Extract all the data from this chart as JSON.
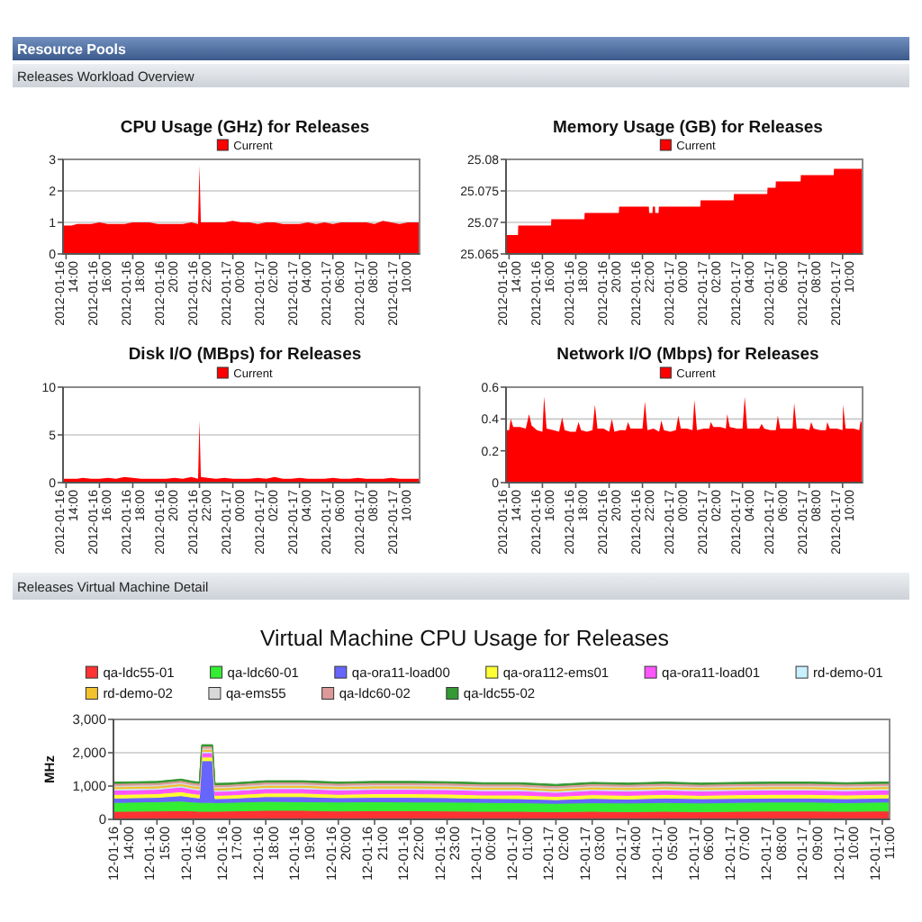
{
  "chart_data": [
    {
      "type": "area",
      "title": "CPU Usage (GHz) for Releases",
      "annotations": [
        "Resource Pools",
        "Releases Workload Overview"
      ],
      "x": [
        "2012-01-16T13:49",
        "2012-01-16T14:00",
        "2012-01-16T14:20",
        "2012-01-16T14:40",
        "2012-01-16T15:00",
        "2012-01-16T15:30",
        "2012-01-16T16:00",
        "2012-01-16T16:30",
        "2012-01-16T17:00",
        "2012-01-16T17:30",
        "2012-01-16T18:00",
        "2012-01-16T18:30",
        "2012-01-16T19:00",
        "2012-01-16T19:30",
        "2012-01-16T20:00",
        "2012-01-16T20:30",
        "2012-01-16T21:00",
        "2012-01-16T21:30",
        "2012-01-16T21:55",
        "2012-01-16T22:00",
        "2012-01-16T22:05",
        "2012-01-16T22:30",
        "2012-01-16T23:00",
        "2012-01-16T23:30",
        "2012-01-17T00:00",
        "2012-01-17T00:30",
        "2012-01-17T01:00",
        "2012-01-17T01:30",
        "2012-01-17T02:00",
        "2012-01-17T02:30",
        "2012-01-17T03:00",
        "2012-01-17T03:30",
        "2012-01-17T04:00",
        "2012-01-17T04:30",
        "2012-01-17T05:00",
        "2012-01-17T05:30",
        "2012-01-17T06:00",
        "2012-01-17T06:30",
        "2012-01-17T07:00",
        "2012-01-17T07:30",
        "2012-01-17T08:00",
        "2012-01-17T08:30",
        "2012-01-17T09:00",
        "2012-01-17T09:30",
        "2012-01-17T10:00",
        "2012-01-17T10:30",
        "2012-01-17T11:00",
        "2012-01-17T11:12"
      ],
      "series": [
        {
          "name": "Current",
          "color": "#ff0000",
          "values": [
            0.9,
            0.9,
            0.9,
            0.95,
            0.95,
            0.95,
            1,
            0.95,
            0.95,
            0.95,
            1,
            1,
            1,
            0.95,
            0.95,
            0.95,
            0.95,
            1,
            0.95,
            2.8,
            1,
            1,
            1,
            1,
            1.05,
            1,
            1,
            0.95,
            1,
            1,
            0.95,
            0.95,
            0.95,
            1,
            0.95,
            1,
            0.95,
            1,
            1,
            1,
            1,
            0.95,
            1.05,
            1,
            0.95,
            1,
            1,
            1
          ]
        }
      ],
      "xlim": [
        "2012-01-16T13:49",
        "2012-01-17T11:12"
      ],
      "xticks": [
        {
          "value": "2012-01-16T14:00",
          "label": "2012-01-16 14:00"
        },
        {
          "value": "2012-01-16T16:00",
          "label": "2012-01-16 16:00"
        },
        {
          "value": "2012-01-16T18:00",
          "label": "2012-01-16 18:00"
        },
        {
          "value": "2012-01-16T20:00",
          "label": "2012-01-16 20:00"
        },
        {
          "value": "2012-01-16T22:00",
          "label": "2012-01-16 22:00"
        },
        {
          "value": "2012-01-17T00:00",
          "label": "2012-01-17 00:00"
        },
        {
          "value": "2012-01-17T02:00",
          "label": "2012-01-17 02:00"
        },
        {
          "value": "2012-01-17T04:00",
          "label": "2012-01-17 04:00"
        },
        {
          "value": "2012-01-17T06:00",
          "label": "2012-01-17 06:00"
        },
        {
          "value": "2012-01-17T08:00",
          "label": "2012-01-17 08:00"
        },
        {
          "value": "2012-01-17T10:00",
          "label": "2012-01-17 10:00"
        }
      ],
      "ylim": [
        0,
        3
      ],
      "yticks": [
        0,
        1,
        2,
        3
      ],
      "grid": "y",
      "legend": "top"
    },
    {
      "type": "area",
      "title": "Memory Usage (GB) for Releases",
      "x": [
        "2012-01-16T13:49",
        "2012-01-16T14:32",
        "2012-01-16T14:33",
        "2012-01-16T16:31",
        "2012-01-16T16:32",
        "2012-01-16T18:31",
        "2012-01-16T18:32",
        "2012-01-16T20:35",
        "2012-01-16T20:36",
        "2012-01-16T22:23",
        "2012-01-16T22:24",
        "2012-01-16T22:36",
        "2012-01-16T22:37",
        "2012-01-16T22:45",
        "2012-01-16T22:46",
        "2012-01-16T22:58",
        "2012-01-16T22:59",
        "2012-01-17T01:28",
        "2012-01-17T01:29",
        "2012-01-17T03:28",
        "2012-01-17T03:29",
        "2012-01-17T05:29",
        "2012-01-17T05:30",
        "2012-01-17T05:59",
        "2012-01-17T06:00",
        "2012-01-17T07:29",
        "2012-01-17T07:30",
        "2012-01-17T09:28",
        "2012-01-17T09:29",
        "2012-01-17T11:12"
      ],
      "series": [
        {
          "name": "Current",
          "color": "#ff0000",
          "values": [
            25.068,
            25.068,
            25.0695,
            25.0695,
            25.0705,
            25.0705,
            25.0715,
            25.0715,
            25.0725,
            25.0725,
            25.0715,
            25.0715,
            25.0725,
            25.0725,
            25.0715,
            25.0715,
            25.0725,
            25.0725,
            25.0735,
            25.0735,
            25.0745,
            25.0745,
            25.0755,
            25.0755,
            25.0765,
            25.0765,
            25.0775,
            25.0775,
            25.0785,
            25.0785
          ]
        }
      ],
      "xlim": [
        "2012-01-16T13:49",
        "2012-01-17T11:12"
      ],
      "xticks": [
        {
          "value": "2012-01-16T14:00",
          "label": "2012-01-16 14:00"
        },
        {
          "value": "2012-01-16T16:00",
          "label": "2012-01-16 16:00"
        },
        {
          "value": "2012-01-16T18:00",
          "label": "2012-01-16 18:00"
        },
        {
          "value": "2012-01-16T20:00",
          "label": "2012-01-16 20:00"
        },
        {
          "value": "2012-01-16T22:00",
          "label": "2012-01-16 22:00"
        },
        {
          "value": "2012-01-17T00:00",
          "label": "2012-01-17 00:00"
        },
        {
          "value": "2012-01-17T02:00",
          "label": "2012-01-17 02:00"
        },
        {
          "value": "2012-01-17T04:00",
          "label": "2012-01-17 04:00"
        },
        {
          "value": "2012-01-17T06:00",
          "label": "2012-01-17 06:00"
        },
        {
          "value": "2012-01-17T08:00",
          "label": "2012-01-17 08:00"
        },
        {
          "value": "2012-01-17T10:00",
          "label": "2012-01-17 10:00"
        }
      ],
      "ylim": [
        25.065,
        25.08
      ],
      "yticks": [
        25.065,
        25.07,
        25.075,
        25.08
      ],
      "grid": "y",
      "legend": "top"
    },
    {
      "type": "area",
      "title": "Disk I/O (MBps) for Releases",
      "x": [
        "2012-01-16T13:49",
        "2012-01-16T14:00",
        "2012-01-16T14:20",
        "2012-01-16T14:40",
        "2012-01-16T15:00",
        "2012-01-16T15:30",
        "2012-01-16T16:00",
        "2012-01-16T16:30",
        "2012-01-16T17:00",
        "2012-01-16T17:30",
        "2012-01-16T18:00",
        "2012-01-16T18:30",
        "2012-01-16T19:00",
        "2012-01-16T19:30",
        "2012-01-16T20:00",
        "2012-01-16T20:30",
        "2012-01-16T21:00",
        "2012-01-16T21:30",
        "2012-01-16T21:55",
        "2012-01-16T22:00",
        "2012-01-16T22:05",
        "2012-01-16T22:30",
        "2012-01-16T23:00",
        "2012-01-16T23:30",
        "2012-01-17T00:00",
        "2012-01-17T00:30",
        "2012-01-17T01:00",
        "2012-01-17T01:30",
        "2012-01-17T02:00",
        "2012-01-17T02:30",
        "2012-01-17T03:00",
        "2012-01-17T03:30",
        "2012-01-17T04:00",
        "2012-01-17T04:30",
        "2012-01-17T05:00",
        "2012-01-17T05:30",
        "2012-01-17T06:00",
        "2012-01-17T06:30",
        "2012-01-17T07:00",
        "2012-01-17T07:30",
        "2012-01-17T08:00",
        "2012-01-17T08:30",
        "2012-01-17T09:00",
        "2012-01-17T09:30",
        "2012-01-17T10:00",
        "2012-01-17T10:30",
        "2012-01-17T11:00",
        "2012-01-17T11:12"
      ],
      "series": [
        {
          "name": "Current",
          "color": "#ff0000",
          "values": [
            0.4,
            0.4,
            0.4,
            0.4,
            0.5,
            0.4,
            0.4,
            0.5,
            0.4,
            0.6,
            0.5,
            0.4,
            0.4,
            0.4,
            0.4,
            0.5,
            0.4,
            0.6,
            0.4,
            6.5,
            0.6,
            0.5,
            0.4,
            0.5,
            0.4,
            0.4,
            0.4,
            0.5,
            0.4,
            0.6,
            0.4,
            0.4,
            0.5,
            0.4,
            0.4,
            0.4,
            0.5,
            0.4,
            0.4,
            0.5,
            0.4,
            0.4,
            0.4,
            0.5,
            0.4,
            0.4,
            0.4,
            0.4
          ]
        }
      ],
      "xlim": [
        "2012-01-16T13:49",
        "2012-01-17T11:12"
      ],
      "xticks": [
        {
          "value": "2012-01-16T14:00",
          "label": "2012-01-16 14:00"
        },
        {
          "value": "2012-01-16T16:00",
          "label": "2012-01-16 16:00"
        },
        {
          "value": "2012-01-16T18:00",
          "label": "2012-01-16 18:00"
        },
        {
          "value": "2012-01-16T20:00",
          "label": "2012-01-16 20:00"
        },
        {
          "value": "2012-01-16T22:00",
          "label": "2012-01-16 22:00"
        },
        {
          "value": "2012-01-17T00:00",
          "label": "2012-01-17 00:00"
        },
        {
          "value": "2012-01-17T02:00",
          "label": "2012-01-17 02:00"
        },
        {
          "value": "2012-01-17T04:00",
          "label": "2012-01-17 04:00"
        },
        {
          "value": "2012-01-17T06:00",
          "label": "2012-01-17 06:00"
        },
        {
          "value": "2012-01-17T08:00",
          "label": "2012-01-17 08:00"
        },
        {
          "value": "2012-01-17T10:00",
          "label": "2012-01-17 10:00"
        }
      ],
      "ylim": [
        0,
        10
      ],
      "yticks": [
        0,
        5,
        10
      ],
      "grid": "y",
      "legend": "top"
    },
    {
      "type": "area",
      "title": "Network I/O (Mbps) for Releases",
      "x": [
        "2012-01-16T13:49",
        "2012-01-16T14:00",
        "2012-01-16T14:06",
        "2012-01-16T14:15",
        "2012-01-16T14:40",
        "2012-01-16T15:00",
        "2012-01-16T15:12",
        "2012-01-16T15:21",
        "2012-01-16T15:40",
        "2012-01-16T16:00",
        "2012-01-16T16:06",
        "2012-01-16T16:15",
        "2012-01-16T16:40",
        "2012-01-16T17:00",
        "2012-01-16T17:11",
        "2012-01-16T17:20",
        "2012-01-16T17:40",
        "2012-01-16T18:00",
        "2012-01-16T18:10",
        "2012-01-16T18:19",
        "2012-01-16T18:40",
        "2012-01-16T19:00",
        "2012-01-16T19:09",
        "2012-01-16T19:18",
        "2012-01-16T19:40",
        "2012-01-16T20:00",
        "2012-01-16T20:10",
        "2012-01-16T20:19",
        "2012-01-16T20:40",
        "2012-01-16T21:00",
        "2012-01-16T21:08",
        "2012-01-16T21:17",
        "2012-01-16T21:40",
        "2012-01-16T22:00",
        "2012-01-16T22:09",
        "2012-01-16T22:18",
        "2012-01-16T22:40",
        "2012-01-16T23:00",
        "2012-01-16T23:08",
        "2012-01-16T23:17",
        "2012-01-16T23:40",
        "2012-01-17T00:00",
        "2012-01-17T00:09",
        "2012-01-17T00:18",
        "2012-01-17T00:40",
        "2012-01-17T01:00",
        "2012-01-17T01:07",
        "2012-01-17T01:16",
        "2012-01-17T01:40",
        "2012-01-17T02:00",
        "2012-01-17T02:06",
        "2012-01-17T02:15",
        "2012-01-17T02:40",
        "2012-01-17T03:00",
        "2012-01-17T03:05",
        "2012-01-17T03:14",
        "2012-01-17T03:40",
        "2012-01-17T04:00",
        "2012-01-17T04:08",
        "2012-01-17T04:17",
        "2012-01-17T04:40",
        "2012-01-17T05:00",
        "2012-01-17T05:09",
        "2012-01-17T05:18",
        "2012-01-17T05:40",
        "2012-01-17T06:00",
        "2012-01-17T06:07",
        "2012-01-17T06:16",
        "2012-01-17T06:40",
        "2012-01-17T07:00",
        "2012-01-17T07:06",
        "2012-01-17T07:15",
        "2012-01-17T07:40",
        "2012-01-17T08:00",
        "2012-01-17T08:07",
        "2012-01-17T08:16",
        "2012-01-17T08:40",
        "2012-01-17T09:00",
        "2012-01-17T09:05",
        "2012-01-17T09:14",
        "2012-01-17T09:40",
        "2012-01-17T10:00",
        "2012-01-17T10:02",
        "2012-01-17T10:11",
        "2012-01-17T10:40",
        "2012-01-17T11:00",
        "2012-01-17T11:05",
        "2012-01-17T11:12"
      ],
      "series": [
        {
          "name": "Current",
          "color": "#ff0000",
          "values": [
            0.33,
            0.33,
            0.4,
            0.35,
            0.35,
            0.34,
            0.43,
            0.36,
            0.33,
            0.32,
            0.54,
            0.34,
            0.33,
            0.32,
            0.41,
            0.33,
            0.32,
            0.32,
            0.38,
            0.33,
            0.32,
            0.33,
            0.49,
            0.34,
            0.34,
            0.32,
            0.4,
            0.32,
            0.33,
            0.33,
            0.38,
            0.34,
            0.34,
            0.34,
            0.51,
            0.33,
            0.34,
            0.32,
            0.39,
            0.33,
            0.32,
            0.33,
            0.42,
            0.34,
            0.34,
            0.33,
            0.52,
            0.33,
            0.34,
            0.34,
            0.38,
            0.35,
            0.35,
            0.34,
            0.43,
            0.35,
            0.34,
            0.34,
            0.54,
            0.34,
            0.34,
            0.34,
            0.37,
            0.34,
            0.33,
            0.33,
            0.42,
            0.34,
            0.34,
            0.34,
            0.5,
            0.34,
            0.34,
            0.33,
            0.38,
            0.34,
            0.33,
            0.33,
            0.38,
            0.34,
            0.34,
            0.33,
            0.49,
            0.34,
            0.34,
            0.33,
            0.39,
            0.36
          ]
        }
      ],
      "xlim": [
        "2012-01-16T13:49",
        "2012-01-17T11:12"
      ],
      "xticks": [
        {
          "value": "2012-01-16T14:00",
          "label": "2012-01-16 14:00"
        },
        {
          "value": "2012-01-16T16:00",
          "label": "2012-01-16 16:00"
        },
        {
          "value": "2012-01-16T18:00",
          "label": "2012-01-16 18:00"
        },
        {
          "value": "2012-01-16T20:00",
          "label": "2012-01-16 20:00"
        },
        {
          "value": "2012-01-16T22:00",
          "label": "2012-01-16 22:00"
        },
        {
          "value": "2012-01-17T00:00",
          "label": "2012-01-17 00:00"
        },
        {
          "value": "2012-01-17T02:00",
          "label": "2012-01-17 02:00"
        },
        {
          "value": "2012-01-17T04:00",
          "label": "2012-01-17 04:00"
        },
        {
          "value": "2012-01-17T06:00",
          "label": "2012-01-17 06:00"
        },
        {
          "value": "2012-01-17T08:00",
          "label": "2012-01-17 08:00"
        },
        {
          "value": "2012-01-17T10:00",
          "label": "2012-01-17 10:00"
        }
      ],
      "ylim": [
        0,
        0.6
      ],
      "yticks": [
        0,
        0.2,
        0.4,
        0.6
      ],
      "grid": "y",
      "legend": "top"
    },
    {
      "type": "area",
      "stacked": true,
      "title": "Virtual Machine CPU Usage for Releases",
      "ylabel": "MHz",
      "annotations": [
        "Releases Virtual Machine Detail"
      ],
      "x": [
        "2012-01-16T13:48",
        "2012-01-16T14:00",
        "2012-01-16T15:00",
        "2012-01-16T15:40",
        "2012-01-16T16:00",
        "2012-01-16T16:10",
        "2012-01-16T16:14",
        "2012-01-16T16:32",
        "2012-01-16T16:36",
        "2012-01-16T17:00",
        "2012-01-16T18:00",
        "2012-01-16T19:00",
        "2012-01-16T20:00",
        "2012-01-16T21:00",
        "2012-01-16T22:00",
        "2012-01-16T23:00",
        "2012-01-17T00:00",
        "2012-01-17T01:00",
        "2012-01-17T02:00",
        "2012-01-17T03:00",
        "2012-01-17T04:00",
        "2012-01-17T05:00",
        "2012-01-17T06:00",
        "2012-01-17T07:00",
        "2012-01-17T08:00",
        "2012-01-17T09:00",
        "2012-01-17T10:00",
        "2012-01-17T11:00",
        "2012-01-17T11:12"
      ],
      "series": [
        {
          "name": "qa-ldc55-01",
          "color": "#ff3333",
          "values": [
            240,
            240,
            250,
            260,
            250,
            240,
            240,
            240,
            240,
            250,
            270,
            270,
            250,
            260,
            260,
            250,
            240,
            240,
            230,
            240,
            230,
            240,
            230,
            240,
            250,
            250,
            240,
            250,
            250
          ]
        },
        {
          "name": "qa-ldc60-01",
          "color": "#33ee33",
          "values": [
            270,
            270,
            280,
            290,
            270,
            270,
            270,
            270,
            260,
            260,
            270,
            260,
            270,
            270,
            260,
            270,
            270,
            260,
            250,
            260,
            260,
            270,
            260,
            270,
            270,
            270,
            260,
            270,
            270
          ]
        },
        {
          "name": "qa-ora11-load00",
          "color": "#6666ff",
          "values": [
            130,
            130,
            130,
            160,
            140,
            130,
            1250,
            1250,
            120,
            120,
            140,
            150,
            130,
            130,
            140,
            130,
            120,
            120,
            110,
            130,
            120,
            130,
            130,
            120,
            120,
            120,
            120,
            120,
            120
          ]
        },
        {
          "name": "qa-ora112-ems01",
          "color": "#ffff33",
          "values": [
            110,
            110,
            110,
            120,
            110,
            110,
            110,
            110,
            100,
            100,
            110,
            110,
            100,
            110,
            110,
            110,
            100,
            110,
            100,
            110,
            110,
            110,
            100,
            110,
            110,
            110,
            110,
            110,
            110
          ]
        },
        {
          "name": "qa-ora11-load01",
          "color": "#ff55ff",
          "values": [
            130,
            130,
            130,
            140,
            130,
            130,
            130,
            130,
            120,
            120,
            130,
            130,
            130,
            130,
            130,
            130,
            130,
            130,
            120,
            130,
            130,
            130,
            130,
            130,
            130,
            130,
            130,
            130,
            130
          ]
        },
        {
          "name": "rd-demo-01",
          "color": "#c8f0ff",
          "values": [
            40,
            40,
            40,
            40,
            40,
            40,
            40,
            40,
            40,
            40,
            40,
            40,
            40,
            40,
            40,
            40,
            40,
            40,
            40,
            40,
            40,
            40,
            40,
            40,
            40,
            40,
            40,
            40,
            40
          ]
        },
        {
          "name": "rd-demo-02",
          "color": "#f2c12e",
          "values": [
            60,
            60,
            60,
            60,
            60,
            60,
            60,
            60,
            60,
            60,
            60,
            60,
            60,
            60,
            60,
            60,
            60,
            60,
            60,
            60,
            60,
            60,
            60,
            60,
            60,
            60,
            60,
            60,
            60
          ]
        },
        {
          "name": "qa-ems55",
          "color": "#d8d8d8",
          "values": [
            40,
            40,
            40,
            40,
            40,
            40,
            40,
            40,
            40,
            40,
            40,
            40,
            40,
            40,
            40,
            40,
            40,
            40,
            40,
            40,
            40,
            40,
            40,
            40,
            40,
            40,
            40,
            40,
            40
          ]
        },
        {
          "name": "qa-ldc60-02",
          "color": "#dd9999",
          "values": [
            60,
            60,
            60,
            60,
            60,
            60,
            60,
            60,
            60,
            60,
            60,
            60,
            60,
            60,
            60,
            60,
            60,
            60,
            60,
            60,
            60,
            60,
            60,
            60,
            60,
            60,
            60,
            60,
            60
          ]
        },
        {
          "name": "qa-ldc55-02",
          "color": "#339933",
          "values": [
            40,
            40,
            40,
            40,
            40,
            40,
            40,
            40,
            40,
            40,
            40,
            40,
            40,
            40,
            40,
            40,
            40,
            40,
            40,
            40,
            40,
            40,
            40,
            40,
            40,
            40,
            40,
            40,
            40
          ]
        }
      ],
      "xlim": [
        "2012-01-16T13:48",
        "2012-01-17T11:12"
      ],
      "xticks": [
        {
          "value": "2012-01-16T14:00",
          "label": "12-01-16 14:00"
        },
        {
          "value": "2012-01-16T15:00",
          "label": "12-01-16 15:00"
        },
        {
          "value": "2012-01-16T16:00",
          "label": "12-01-16 16:00"
        },
        {
          "value": "2012-01-16T17:00",
          "label": "12-01-16 17:00"
        },
        {
          "value": "2012-01-16T18:00",
          "label": "12-01-16 18:00"
        },
        {
          "value": "2012-01-16T19:00",
          "label": "12-01-16 19:00"
        },
        {
          "value": "2012-01-16T20:00",
          "label": "12-01-16 20:00"
        },
        {
          "value": "2012-01-16T21:00",
          "label": "12-01-16 21:00"
        },
        {
          "value": "2012-01-16T22:00",
          "label": "12-01-16 22:00"
        },
        {
          "value": "2012-01-16T23:00",
          "label": "12-01-16 23:00"
        },
        {
          "value": "2012-01-17T00:00",
          "label": "12-01-17 00:00"
        },
        {
          "value": "2012-01-17T01:00",
          "label": "12-01-17 01:00"
        },
        {
          "value": "2012-01-17T02:00",
          "label": "12-01-17 02:00"
        },
        {
          "value": "2012-01-17T03:00",
          "label": "12-01-17 03:00"
        },
        {
          "value": "2012-01-17T04:00",
          "label": "12-01-17 04:00"
        },
        {
          "value": "2012-01-17T05:00",
          "label": "12-01-17 05:00"
        },
        {
          "value": "2012-01-17T06:00",
          "label": "12-01-17 06:00"
        },
        {
          "value": "2012-01-17T07:00",
          "label": "12-01-17 07:00"
        },
        {
          "value": "2012-01-17T08:00",
          "label": "12-01-17 08:00"
        },
        {
          "value": "2012-01-17T09:00",
          "label": "12-01-17 09:00"
        },
        {
          "value": "2012-01-17T10:00",
          "label": "12-01-17 10:00"
        },
        {
          "value": "2012-01-17T11:00",
          "label": "12-01-17 11:00"
        }
      ],
      "ylim": [
        0,
        3000
      ],
      "yticks": [
        0,
        {
          "value": 1000,
          "label": "1,000"
        },
        {
          "value": 2000,
          "label": "2,000"
        },
        {
          "value": 3000,
          "label": "3,000"
        }
      ],
      "grid": "y",
      "legend": "top"
    }
  ]
}
